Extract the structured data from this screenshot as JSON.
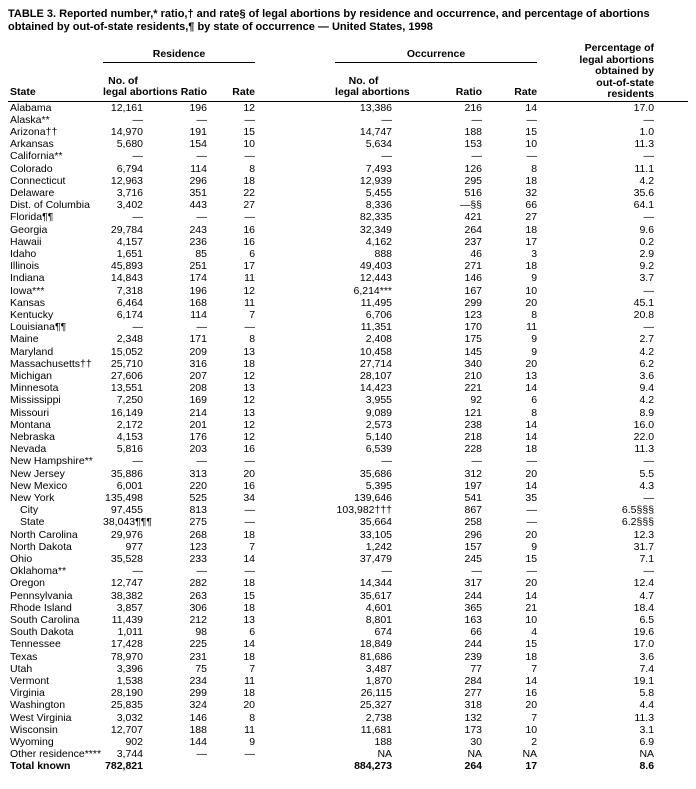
{
  "title": "TABLE 3. Reported number,* ratio,† and rate§ of legal abortions by residence and occurrence, and percentage of abortions obtained by out-of-state residents,¶ by state of occurrence — United States, 1998",
  "header": {
    "state": "State",
    "residence": "Residence",
    "occurrence": "Occurrence",
    "no_line1": "No. of",
    "no_line2": "legal abortions",
    "ratio": "Ratio",
    "rate": "Rate",
    "pct_lines": [
      "Percentage of",
      "legal abortions",
      "obtained by",
      "out-of-state",
      "residents"
    ]
  },
  "rows": [
    {
      "state": "Alabama",
      "values": [
        "12,161",
        "196",
        "12",
        "13,386",
        "216",
        "14",
        "17.0"
      ]
    },
    {
      "state": "Alaska**",
      "values": [
        "—",
        "—",
        "—",
        "—",
        "—",
        "—",
        "—"
      ]
    },
    {
      "state": "Arizona††",
      "values": [
        "14,970",
        "191",
        "15",
        "14,747",
        "188",
        "15",
        "1.0"
      ]
    },
    {
      "state": "Arkansas",
      "values": [
        "5,680",
        "154",
        "10",
        "5,634",
        "153",
        "10",
        "11.3"
      ]
    },
    {
      "state": "California**",
      "values": [
        "—",
        "—",
        "—",
        "—",
        "—",
        "—",
        "—"
      ]
    },
    {
      "state": "Colorado",
      "values": [
        "6,794",
        "114",
        "8",
        "7,493",
        "126",
        "8",
        "11.1"
      ]
    },
    {
      "state": "Connecticut",
      "values": [
        "12,963",
        "296",
        "18",
        "12,939",
        "295",
        "18",
        "4.2"
      ]
    },
    {
      "state": "Delaware",
      "values": [
        "3,716",
        "351",
        "22",
        "5,455",
        "516",
        "32",
        "35.6"
      ]
    },
    {
      "state": "Dist. of Columbia",
      "values": [
        "3,402",
        "443",
        "27",
        "8,336",
        "—§§",
        "66",
        "64.1"
      ]
    },
    {
      "state": "Florida¶¶",
      "values": [
        "—",
        "—",
        "—",
        "82,335",
        "421",
        "27",
        "—"
      ]
    },
    {
      "state": "Georgia",
      "values": [
        "29,784",
        "243",
        "16",
        "32,349",
        "264",
        "18",
        "9.6"
      ]
    },
    {
      "state": "Hawaii",
      "values": [
        "4,157",
        "236",
        "16",
        "4,162",
        "237",
        "17",
        "0.2"
      ]
    },
    {
      "state": "Idaho",
      "values": [
        "1,651",
        "85",
        "6",
        "888",
        "46",
        "3",
        "2.9"
      ]
    },
    {
      "state": "Illinois",
      "values": [
        "45,893",
        "251",
        "17",
        "49,403",
        "271",
        "18",
        "9.2"
      ]
    },
    {
      "state": "Indiana",
      "values": [
        "14,843",
        "174",
        "11",
        "12,443",
        "146",
        "9",
        "3.7"
      ]
    },
    {
      "state": "Iowa***",
      "values": [
        "7,318",
        "196",
        "12",
        "6,214***",
        "167",
        "10",
        "—"
      ]
    },
    {
      "state": "Kansas",
      "values": [
        "6,464",
        "168",
        "11",
        "11,495",
        "299",
        "20",
        "45.1"
      ]
    },
    {
      "state": "Kentucky",
      "values": [
        "6,174",
        "114",
        "7",
        "6,706",
        "123",
        "8",
        "20.8"
      ]
    },
    {
      "state": "Louisiana¶¶",
      "values": [
        "—",
        "—",
        "—",
        "11,351",
        "170",
        "11",
        "—"
      ]
    },
    {
      "state": "Maine",
      "values": [
        "2,348",
        "171",
        "8",
        "2,408",
        "175",
        "9",
        "2.7"
      ]
    },
    {
      "state": "Maryland",
      "values": [
        "15,052",
        "209",
        "13",
        "10,458",
        "145",
        "9",
        "4.2"
      ]
    },
    {
      "state": "Massachusetts††",
      "values": [
        "25,710",
        "316",
        "18",
        "27,714",
        "340",
        "20",
        "6.2"
      ]
    },
    {
      "state": "Michigan",
      "values": [
        "27,606",
        "207",
        "12",
        "28,107",
        "210",
        "13",
        "3.6"
      ]
    },
    {
      "state": "Minnesota",
      "values": [
        "13,551",
        "208",
        "13",
        "14,423",
        "221",
        "14",
        "9.4"
      ]
    },
    {
      "state": "Mississippi",
      "values": [
        "7,250",
        "169",
        "12",
        "3,955",
        "92",
        "6",
        "4.2"
      ]
    },
    {
      "state": "Missouri",
      "values": [
        "16,149",
        "214",
        "13",
        "9,089",
        "121",
        "8",
        "8.9"
      ]
    },
    {
      "state": "Montana",
      "values": [
        "2,172",
        "201",
        "12",
        "2,573",
        "238",
        "14",
        "16.0"
      ]
    },
    {
      "state": "Nebraska",
      "values": [
        "4,153",
        "176",
        "12",
        "5,140",
        "218",
        "14",
        "22.0"
      ]
    },
    {
      "state": "Nevada",
      "values": [
        "5,816",
        "203",
        "16",
        "6,539",
        "228",
        "18",
        "11.3"
      ]
    },
    {
      "state": "New Hampshire**",
      "values": [
        "—",
        "—",
        "—",
        "—",
        "—",
        "—",
        "—"
      ]
    },
    {
      "state": "New Jersey",
      "values": [
        "35,886",
        "313",
        "20",
        "35,686",
        "312",
        "20",
        "5.5"
      ]
    },
    {
      "state": "New Mexico",
      "values": [
        "6,001",
        "220",
        "16",
        "5,395",
        "197",
        "14",
        "4.3"
      ]
    },
    {
      "state": "New York",
      "values": [
        "135,498",
        "525",
        "34",
        "139,646",
        "541",
        "35",
        "—"
      ]
    },
    {
      "state": "City",
      "indent": true,
      "values": [
        "97,455",
        "813",
        "—",
        "103,982†††",
        "867",
        "—",
        "6.5§§§"
      ]
    },
    {
      "state": "State",
      "indent": true,
      "values": [
        "38,043¶¶¶",
        "275",
        "—",
        "35,664",
        "258",
        "—",
        "6.2§§§"
      ]
    },
    {
      "state": "North Carolina",
      "values": [
        "29,976",
        "268",
        "18",
        "33,105",
        "296",
        "20",
        "12.3"
      ]
    },
    {
      "state": "North Dakota",
      "values": [
        "977",
        "123",
        "7",
        "1,242",
        "157",
        "9",
        "31.7"
      ]
    },
    {
      "state": "Ohio",
      "values": [
        "35,528",
        "233",
        "14",
        "37,479",
        "245",
        "15",
        "7.1"
      ]
    },
    {
      "state": "Oklahoma**",
      "values": [
        "—",
        "—",
        "—",
        "—",
        "—",
        "—",
        "—"
      ]
    },
    {
      "state": "Oregon",
      "values": [
        "12,747",
        "282",
        "18",
        "14,344",
        "317",
        "20",
        "12.4"
      ]
    },
    {
      "state": "Pennsylvania",
      "values": [
        "38,382",
        "263",
        "15",
        "35,617",
        "244",
        "14",
        "4.7"
      ]
    },
    {
      "state": "Rhode Island",
      "values": [
        "3,857",
        "306",
        "18",
        "4,601",
        "365",
        "21",
        "18.4"
      ]
    },
    {
      "state": "South Carolina",
      "values": [
        "11,439",
        "212",
        "13",
        "8,801",
        "163",
        "10",
        "6.5"
      ]
    },
    {
      "state": "South Dakota",
      "values": [
        "1,011",
        "98",
        "6",
        "674",
        "66",
        "4",
        "19.6"
      ]
    },
    {
      "state": "Tennessee",
      "values": [
        "17,428",
        "225",
        "14",
        "18,849",
        "244",
        "15",
        "17.0"
      ]
    },
    {
      "state": "Texas",
      "values": [
        "78,970",
        "231",
        "18",
        "81,686",
        "239",
        "18",
        "3.6"
      ]
    },
    {
      "state": "Utah",
      "values": [
        "3,396",
        "75",
        "7",
        "3,487",
        "77",
        "7",
        "7.4"
      ]
    },
    {
      "state": "Vermont",
      "values": [
        "1,538",
        "234",
        "11",
        "1,870",
        "284",
        "14",
        "19.1"
      ]
    },
    {
      "state": "Virginia",
      "values": [
        "28,190",
        "299",
        "18",
        "26,115",
        "277",
        "16",
        "5.8"
      ]
    },
    {
      "state": "Washington",
      "values": [
        "25,835",
        "324",
        "20",
        "25,327",
        "318",
        "20",
        "4.4"
      ]
    },
    {
      "state": "West Virginia",
      "values": [
        "3,032",
        "146",
        "8",
        "2,738",
        "132",
        "7",
        "11.3"
      ]
    },
    {
      "state": "Wisconsin",
      "values": [
        "12,707",
        "188",
        "11",
        "11,681",
        "173",
        "10",
        "3.1"
      ]
    },
    {
      "state": "Wyoming",
      "values": [
        "902",
        "144",
        "9",
        "188",
        "30",
        "2",
        "6.9"
      ]
    },
    {
      "state": "Other residence****",
      "values": [
        "3,744",
        "—",
        "—",
        "NA",
        "NA",
        "NA",
        "NA"
      ]
    },
    {
      "state": "Total known",
      "bold": true,
      "values": [
        "782,821",
        "",
        "",
        "884,273",
        "264",
        "17",
        "8.6"
      ]
    }
  ]
}
